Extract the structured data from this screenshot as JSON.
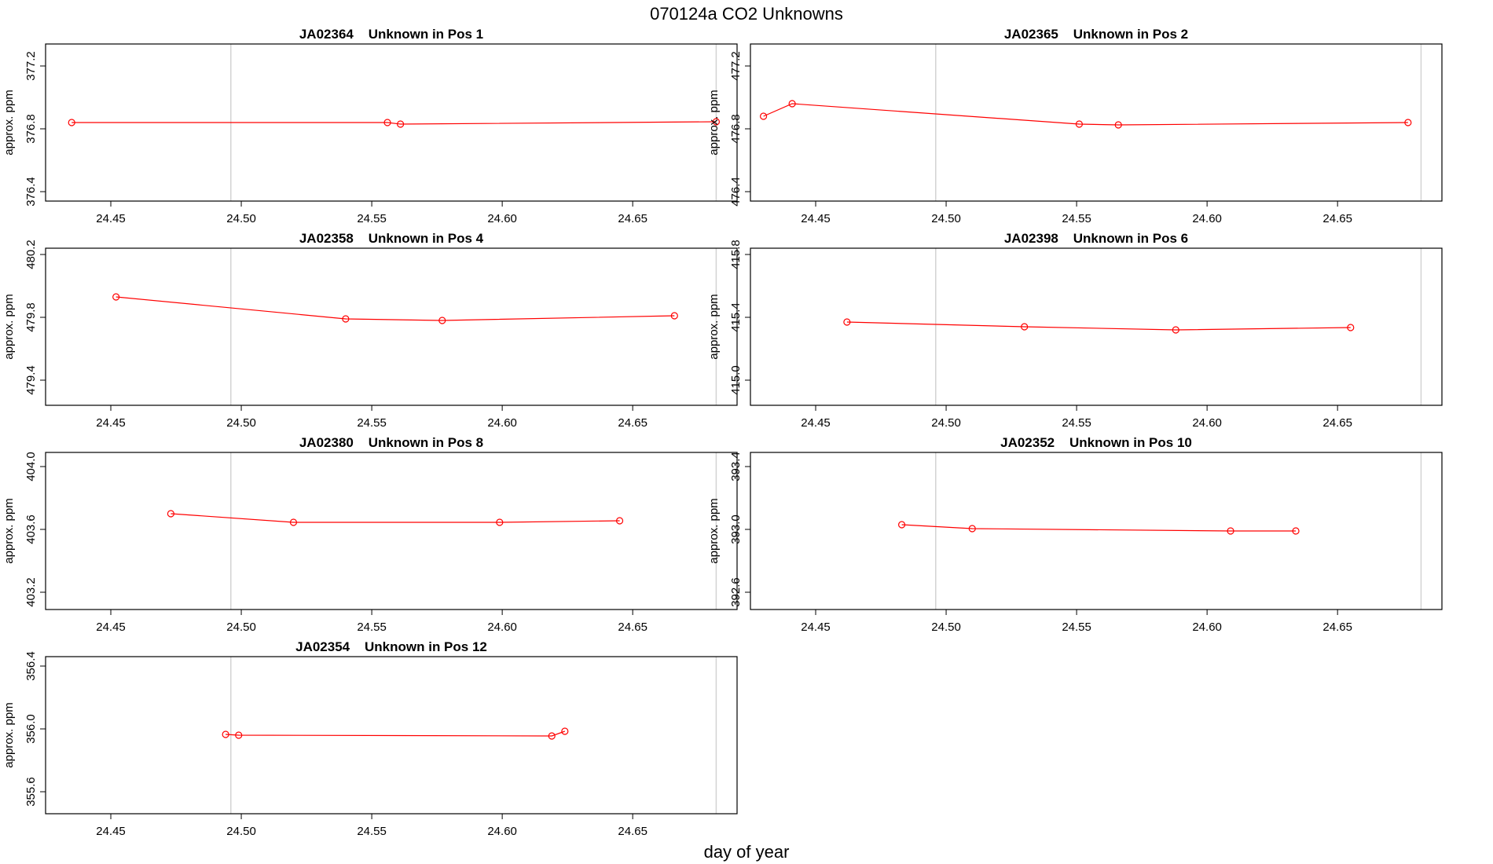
{
  "figure": {
    "title": "070124a  CO2 Unknowns",
    "xlabel": "day of year"
  },
  "chart_data": [
    {
      "type": "line",
      "title": "JA02364    Unknown in Pos 1",
      "ylabel": "approx. ppm",
      "xlim": [
        24.425,
        24.69
      ],
      "ylim": [
        376.34,
        377.34
      ],
      "xticks": [
        "24.45",
        "24.50",
        "24.55",
        "24.60",
        "24.65"
      ],
      "yticks": [
        "376.4",
        "376.8",
        "377.2"
      ],
      "vlines": [
        24.496,
        24.682
      ],
      "series": [
        {
          "x": [
            24.435,
            24.556,
            24.561,
            24.682
          ],
          "y": [
            376.84,
            376.84,
            376.83,
            376.845
          ]
        }
      ]
    },
    {
      "type": "line",
      "title": "JA02365    Unknown in Pos 2",
      "ylabel": "approx. ppm",
      "xlim": [
        24.425,
        24.69
      ],
      "ylim": [
        476.34,
        477.34
      ],
      "xticks": [
        "24.45",
        "24.50",
        "24.55",
        "24.60",
        "24.65"
      ],
      "yticks": [
        "476.4",
        "476.8",
        "477.2"
      ],
      "vlines": [
        24.496,
        24.682
      ],
      "series": [
        {
          "x": [
            24.43,
            24.441,
            24.551,
            24.566,
            24.677
          ],
          "y": [
            476.88,
            476.96,
            476.83,
            476.825,
            476.84
          ]
        }
      ]
    },
    {
      "type": "line",
      "title": "JA02358    Unknown in Pos 4",
      "ylabel": "approx. ppm",
      "xlim": [
        24.425,
        24.69
      ],
      "ylim": [
        479.24,
        480.24
      ],
      "xticks": [
        "24.45",
        "24.50",
        "24.55",
        "24.60",
        "24.65"
      ],
      "yticks": [
        "479.4",
        "479.8",
        "480.2"
      ],
      "vlines": [
        24.496,
        24.682
      ],
      "series": [
        {
          "x": [
            24.452,
            24.54,
            24.577,
            24.666
          ],
          "y": [
            479.93,
            479.79,
            479.78,
            479.81
          ]
        }
      ]
    },
    {
      "type": "line",
      "title": "JA02398    Unknown in Pos 6",
      "ylabel": "approx. ppm",
      "xlim": [
        24.425,
        24.69
      ],
      "ylim": [
        414.84,
        415.84
      ],
      "xticks": [
        "24.45",
        "24.50",
        "24.55",
        "24.60",
        "24.65"
      ],
      "yticks": [
        "415.0",
        "415.4",
        "415.8"
      ],
      "vlines": [
        24.496,
        24.682
      ],
      "series": [
        {
          "x": [
            24.462,
            24.53,
            24.588,
            24.655
          ],
          "y": [
            415.37,
            415.34,
            415.32,
            415.335
          ]
        }
      ]
    },
    {
      "type": "line",
      "title": "JA02380    Unknown in Pos 8",
      "ylabel": "approx. ppm",
      "xlim": [
        24.425,
        24.69
      ],
      "ylim": [
        403.09,
        404.09
      ],
      "xticks": [
        "24.45",
        "24.50",
        "24.55",
        "24.60",
        "24.65"
      ],
      "yticks": [
        "403.2",
        "403.6",
        "404.0"
      ],
      "vlines": [
        24.496,
        24.682
      ],
      "series": [
        {
          "x": [
            24.473,
            24.52,
            24.599,
            24.645
          ],
          "y": [
            403.7,
            403.645,
            403.645,
            403.655
          ]
        }
      ]
    },
    {
      "type": "line",
      "title": "JA02352    Unknown in Pos 10",
      "ylabel": "approx. ppm",
      "xlim": [
        24.425,
        24.69
      ],
      "ylim": [
        392.49,
        393.49
      ],
      "xticks": [
        "24.45",
        "24.50",
        "24.55",
        "24.60",
        "24.65"
      ],
      "yticks": [
        "392.6",
        "393.0",
        "393.4"
      ],
      "vlines": [
        24.496,
        24.682
      ],
      "series": [
        {
          "x": [
            24.483,
            24.51,
            24.609,
            24.634
          ],
          "y": [
            393.03,
            393.005,
            392.99,
            392.99
          ]
        }
      ]
    },
    {
      "type": "line",
      "title": "JA02354    Unknown in Pos 12",
      "ylabel": "approx. ppm",
      "xlim": [
        24.425,
        24.69
      ],
      "ylim": [
        355.46,
        356.46
      ],
      "xticks": [
        "24.45",
        "24.50",
        "24.55",
        "24.60",
        "24.65"
      ],
      "yticks": [
        "355.6",
        "356.0",
        "356.4"
      ],
      "vlines": [
        24.496,
        24.682
      ],
      "series": [
        {
          "x": [
            24.494,
            24.499,
            24.619,
            24.624
          ],
          "y": [
            355.965,
            355.96,
            355.955,
            355.985
          ]
        }
      ]
    }
  ],
  "colors": {
    "series": "#ff0000",
    "vline": "#d3d3d3",
    "axis": "#000000"
  }
}
